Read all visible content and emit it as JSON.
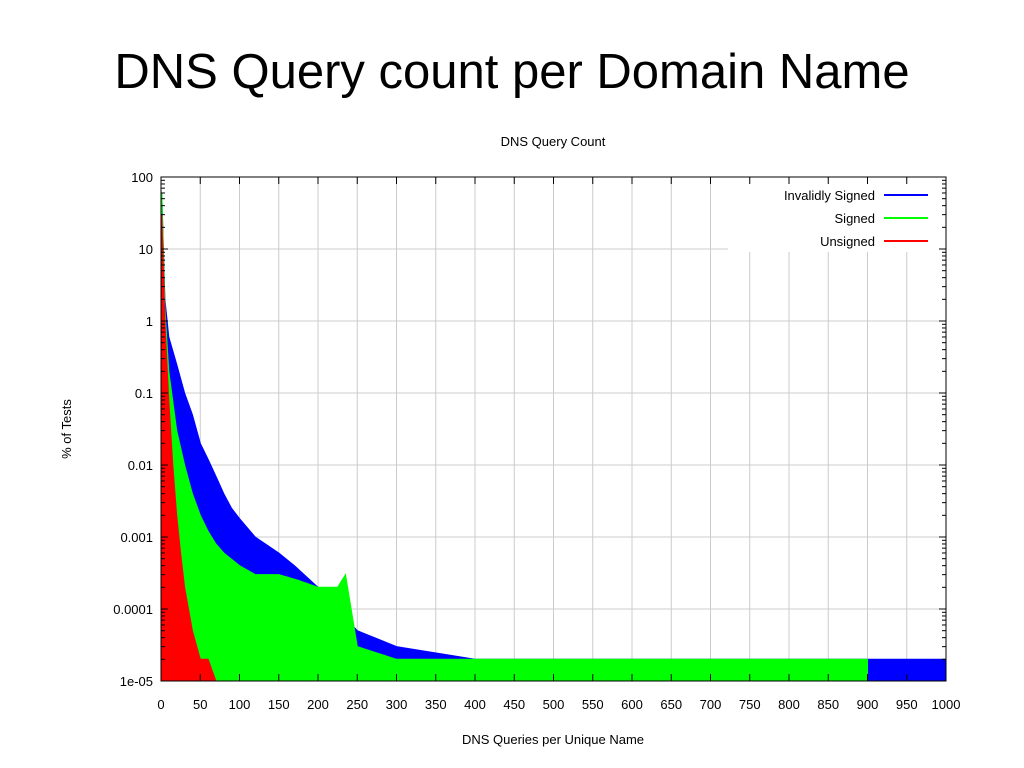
{
  "slide": {
    "title": "DNS Query count per Domain Name"
  },
  "colors": {
    "invalid": "#0000ff",
    "signed": "#00ff00",
    "unsigned": "#ff0000",
    "grid": "#cccccc",
    "axis": "#000000"
  },
  "chart_data": {
    "type": "area",
    "title": "DNS Query Count",
    "xlabel": "DNS Queries per Unique Name",
    "ylabel": "% of Tests",
    "xlim": [
      0,
      1000
    ],
    "ylim": [
      1e-05,
      100
    ],
    "yscale": "log",
    "grid": true,
    "legend_position": "top-right",
    "x_ticks": [
      "0",
      "50",
      "100",
      "150",
      "200",
      "250",
      "300",
      "350",
      "400",
      "450",
      "500",
      "550",
      "600",
      "650",
      "700",
      "750",
      "800",
      "850",
      "900",
      "950",
      "1000"
    ],
    "y_ticks": [
      "100",
      "10",
      "1",
      "0.1",
      "0.01",
      "0.001",
      "0.0001",
      "1e-05"
    ],
    "series": [
      {
        "name": "Invalidly Signed",
        "color": "#0000ff",
        "x": [
          1,
          5,
          10,
          20,
          30,
          40,
          50,
          60,
          70,
          80,
          90,
          100,
          120,
          150,
          170,
          200,
          250,
          300,
          400,
          500,
          600,
          700,
          800,
          900,
          1000
        ],
        "y": [
          60,
          2,
          0.6,
          0.25,
          0.1,
          0.05,
          0.02,
          0.012,
          0.007,
          0.004,
          0.0025,
          0.0018,
          0.001,
          0.0006,
          0.0004,
          0.0002,
          5e-05,
          3e-05,
          2e-05,
          2e-05,
          2e-05,
          2e-05,
          2e-05,
          2e-05,
          2e-05
        ]
      },
      {
        "name": "Signed",
        "color": "#00ff00",
        "x": [
          1,
          5,
          10,
          20,
          30,
          40,
          50,
          60,
          70,
          80,
          100,
          120,
          150,
          175,
          200,
          225,
          235,
          250,
          300,
          400,
          500,
          600,
          700,
          800,
          900
        ],
        "y": [
          60,
          1.5,
          0.2,
          0.03,
          0.01,
          0.004,
          0.002,
          0.0012,
          0.0008,
          0.0006,
          0.0004,
          0.0003,
          0.0003,
          0.00025,
          0.0002,
          0.0002,
          0.0003,
          3e-05,
          2e-05,
          2e-05,
          2e-05,
          2e-05,
          2e-05,
          2e-05,
          2e-05
        ]
      },
      {
        "name": "Unsigned",
        "color": "#ff0000",
        "x": [
          1,
          3,
          5,
          8,
          10,
          15,
          20,
          25,
          30,
          35,
          40,
          50,
          60,
          70
        ],
        "y": [
          30,
          5,
          1,
          0.2,
          0.08,
          0.01,
          0.002,
          0.0006,
          0.0002,
          0.0001,
          5e-05,
          2e-05,
          2e-05,
          1e-05
        ]
      }
    ],
    "annotations": []
  }
}
